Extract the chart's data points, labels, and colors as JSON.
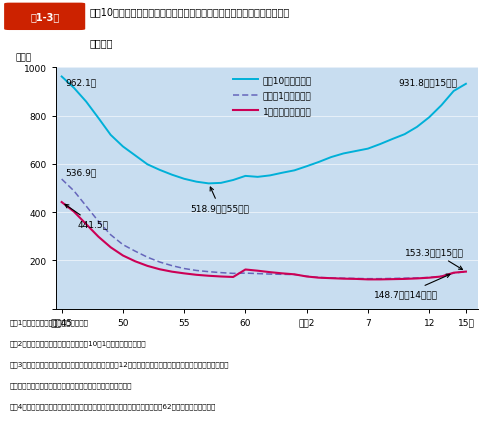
{
  "title_box_text": "第1-3図",
  "title_line1": "人口10万人・自動車１万台・自動車１億走行キロ当たりの交通事故死傷者",
  "title_line2": "数の推移",
  "ylabel": "（人）",
  "bg_color": "#c8ddf0",
  "x_ticks_labels": [
    "昭和45",
    "50",
    "55",
    "60",
    "平成2",
    "7",
    "12",
    "15年"
  ],
  "x_ticks_pos": [
    1970,
    1975,
    1980,
    1985,
    1990,
    1995,
    2000,
    2003
  ],
  "ylim": [
    0,
    1000
  ],
  "yticks": [
    0,
    200,
    400,
    600,
    800,
    1000
  ],
  "legend_labels": [
    "人口10万人当たり",
    "自動車1万台当たり",
    "1億走行キロ当たり"
  ],
  "line1_color": "#00b0d8",
  "line2_color": "#6666bb",
  "line3_color": "#cc0055",
  "line1_x": [
    1970,
    1971,
    1972,
    1973,
    1974,
    1975,
    1976,
    1977,
    1978,
    1979,
    1980,
    1981,
    1982,
    1983,
    1984,
    1985,
    1986,
    1987,
    1988,
    1989,
    1990,
    1991,
    1992,
    1993,
    1994,
    1995,
    1996,
    1997,
    1998,
    1999,
    2000,
    2001,
    2002,
    2003
  ],
  "line1_y": [
    962.1,
    915,
    858,
    790,
    720,
    672,
    635,
    598,
    575,
    555,
    538,
    526,
    518.9,
    521,
    533,
    550,
    546,
    552,
    563,
    573,
    590,
    608,
    628,
    643,
    653,
    663,
    682,
    703,
    723,
    753,
    793,
    843,
    902,
    931.8
  ],
  "line2_x": [
    1970,
    1971,
    1972,
    1973,
    1974,
    1975,
    1976,
    1977,
    1978,
    1979,
    1980,
    1981,
    1982,
    1983,
    1984,
    1985,
    1986,
    1987,
    1988,
    1989,
    1990,
    1991,
    1992,
    1993,
    1994,
    1995,
    1996,
    1997,
    1998,
    1999,
    2000,
    2001,
    2002,
    2003
  ],
  "line2_y": [
    536.9,
    488,
    425,
    362,
    306,
    265,
    238,
    213,
    193,
    178,
    166,
    158,
    153,
    149,
    146,
    147,
    145,
    143,
    142,
    141,
    134,
    129,
    127,
    126,
    125,
    124,
    124,
    125,
    126,
    127,
    129,
    134,
    147,
    153.3
  ],
  "line3_x": [
    1970,
    1971,
    1972,
    1973,
    1974,
    1975,
    1976,
    1977,
    1978,
    1979,
    1980,
    1981,
    1982,
    1983,
    1984,
    1985,
    1986,
    1987,
    1988,
    1989,
    1990,
    1991,
    1992,
    1993,
    1994,
    1995,
    1996,
    1997,
    1998,
    1999,
    2000,
    2001,
    2002,
    2003
  ],
  "line3_y": [
    441.5,
    402,
    350,
    298,
    254,
    220,
    196,
    177,
    163,
    153,
    146,
    140,
    136,
    133,
    131,
    162,
    157,
    151,
    146,
    142,
    133,
    128,
    126,
    124,
    123,
    121,
    121,
    122,
    123,
    125,
    128,
    133,
    148.7,
    153.3
  ],
  "notes": [
    "注　1　死傷者数は警察庁資料による。",
    "　　2　人口は総務省資料により，各年10月1日現在の値である。",
    "　　3　自動車保有台数は国土交通省資料により，各年12月末現在の値である。保有台数には，第１種及び第",
    "　　　２種原動機付自転車並びに小型特殊自動車を含まない。",
    "　　4　自動車走行キロは国土交通省資料により，軽自動車によるものは昭和62年度から計上された。"
  ]
}
